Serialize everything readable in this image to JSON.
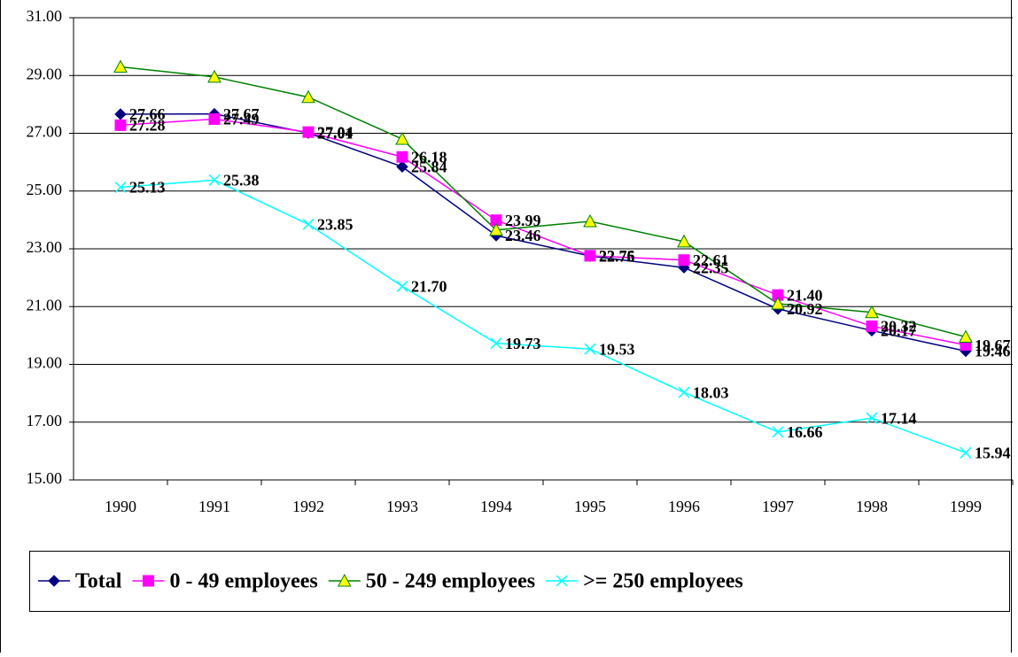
{
  "chart_data": {
    "type": "line",
    "categories": [
      "1990",
      "1991",
      "1992",
      "1993",
      "1994",
      "1995",
      "1996",
      "1997",
      "1998",
      "1999"
    ],
    "ylim": [
      15,
      31
    ],
    "yticks": [
      {
        "value": 15,
        "label": "15.00"
      },
      {
        "value": 17,
        "label": "17.00"
      },
      {
        "value": 19,
        "label": "19.00"
      },
      {
        "value": 21,
        "label": "21.00"
      },
      {
        "value": 23,
        "label": "23.00"
      },
      {
        "value": 25,
        "label": "25.00"
      },
      {
        "value": 27,
        "label": "27.00"
      },
      {
        "value": 29,
        "label": "29.00"
      },
      {
        "value": 31,
        "label": "31.00"
      }
    ],
    "grid": true,
    "legend": "bottom",
    "series": [
      {
        "name": "Total",
        "color": "#000080",
        "marker": "diamond",
        "values": [
          27.66,
          27.67,
          27.01,
          25.84,
          23.46,
          22.75,
          22.35,
          20.92,
          20.17,
          19.46
        ],
        "value_labels": [
          "27.66",
          "27.67",
          "27.01",
          "25.84",
          "23.46",
          "22.75",
          "22.35",
          "20.92",
          "20.17",
          "19.46"
        ]
      },
      {
        "name": "0 - 49 employees",
        "color": "#ff00ff",
        "marker": "square",
        "values": [
          27.28,
          27.49,
          27.04,
          26.18,
          23.99,
          22.76,
          22.61,
          21.4,
          20.32,
          19.67
        ],
        "value_labels": [
          "27.28",
          "27.49",
          "27.04",
          "26.18",
          "23.99",
          "22.76",
          "22.61",
          "21.40",
          "20.32",
          "19.67"
        ]
      },
      {
        "name": "50 - 249 employees",
        "color": "#008000",
        "marker": "triangle",
        "values": [
          29.3,
          28.95,
          28.25,
          26.8,
          23.65,
          23.95,
          23.25,
          21.1,
          20.8,
          19.95
        ]
      },
      {
        "name": ">= 250 employees",
        "color": "#00ffff",
        "marker": "x",
        "values": [
          25.13,
          25.38,
          23.85,
          21.7,
          19.73,
          19.53,
          18.03,
          16.66,
          17.14,
          15.94
        ],
        "value_labels": [
          "25.13",
          "25.38",
          "23.85",
          "21.70",
          "19.73",
          "19.53",
          "18.03",
          "16.66",
          "17.14",
          "15.94"
        ]
      }
    ]
  }
}
